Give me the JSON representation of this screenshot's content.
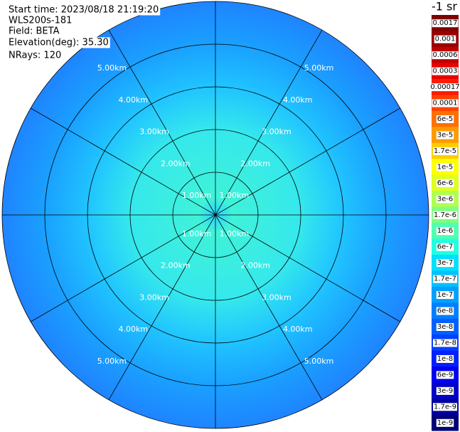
{
  "info": [
    "Start time: 2023/08/18 21:19:20",
    "WLS200s-181",
    "Field: BETA",
    "Elevation(deg): 35.30",
    "NRays: 120"
  ],
  "range_labels": [
    "1.00km",
    "2.00km",
    "3.00km",
    "4.00km",
    "5.00km"
  ],
  "colorbar": {
    "title": "-1 sr",
    "labels": [
      "0.0017",
      "0.001",
      "0.0006",
      "0.0003",
      "0.00017",
      "0.0001",
      "6e-5",
      "3e-5",
      "1.7e-5",
      "1e-5",
      "6e-6",
      "3e-6",
      "1.7e-6",
      "1e-6",
      "6e-7",
      "3e-7",
      "1.7e-7",
      "1e-7",
      "6e-8",
      "3e-8",
      "1.7e-8",
      "1e-8",
      "6e-9",
      "3e-9",
      "1.7e-9",
      "1e-9"
    ],
    "colors": [
      "#800000",
      "#9a0000",
      "#c00000",
      "#e60000",
      "#ff1a00",
      "#ff4000",
      "#ff7000",
      "#ff9a00",
      "#ffcc00",
      "#ffff00",
      "#e0ff20",
      "#b0ff50",
      "#80ff80",
      "#50ffb0",
      "#20ffe0",
      "#00e0ff",
      "#00c0ff",
      "#00a0ff",
      "#0080ff",
      "#0060ff",
      "#0040ff",
      "#0020ff",
      "#0000f0",
      "#0000c8",
      "#0000a0",
      "#000078"
    ]
  }
}
